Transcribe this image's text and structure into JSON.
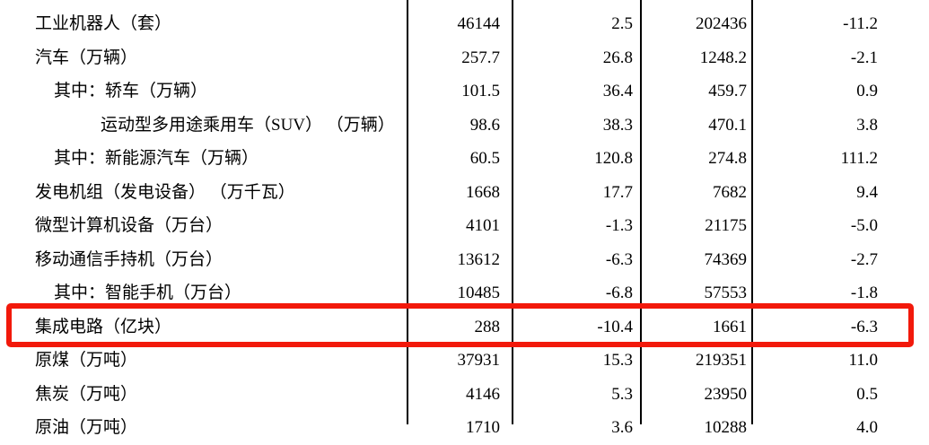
{
  "table": {
    "rows": [
      {
        "label": "工业机器人（套）",
        "indent": 0,
        "values": [
          "46144",
          "2.5",
          "202436",
          "-11.2"
        ],
        "highlight": false
      },
      {
        "label": "汽车（万辆）",
        "indent": 0,
        "values": [
          "257.7",
          "26.8",
          "1248.2",
          "-2.1"
        ],
        "highlight": false
      },
      {
        "label": "其中：轿车（万辆）",
        "indent": 1,
        "values": [
          "101.5",
          "36.4",
          "459.7",
          "0.9"
        ],
        "highlight": false
      },
      {
        "label": "运动型多用途乘用车（SUV） （万辆）",
        "indent": 2,
        "values": [
          "98.6",
          "38.3",
          "470.1",
          "3.8"
        ],
        "highlight": false
      },
      {
        "label": "其中：新能源汽车（万辆）",
        "indent": 1,
        "values": [
          "60.5",
          "120.8",
          "274.8",
          "111.2"
        ],
        "highlight": false
      },
      {
        "label": "发电机组（发电设备） （万千瓦）",
        "indent": 0,
        "values": [
          "1668",
          "17.7",
          "7682",
          "9.4"
        ],
        "highlight": false
      },
      {
        "label": "微型计算机设备（万台）",
        "indent": 0,
        "values": [
          "4101",
          "-1.3",
          "21175",
          "-5.0"
        ],
        "highlight": false
      },
      {
        "label": "移动通信手持机（万台）",
        "indent": 0,
        "values": [
          "13612",
          "-6.3",
          "74369",
          "-2.7"
        ],
        "highlight": false
      },
      {
        "label": "其中：智能手机（万台）",
        "indent": 1,
        "values": [
          "10485",
          "-6.8",
          "57553",
          "-1.8"
        ],
        "highlight": false
      },
      {
        "label": "集成电路（亿块）",
        "indent": 0,
        "values": [
          "288",
          "-10.4",
          "1661",
          "-6.3"
        ],
        "highlight": true
      },
      {
        "label": "原煤（万吨）",
        "indent": 0,
        "values": [
          "37931",
          "15.3",
          "219351",
          "11.0"
        ],
        "highlight": false
      },
      {
        "label": "焦炭（万吨）",
        "indent": 0,
        "values": [
          "4146",
          "5.3",
          "23950",
          "0.5"
        ],
        "highlight": false
      },
      {
        "label": "原油（万吨）",
        "indent": 0,
        "values": [
          "1710",
          "3.6",
          "10288",
          "4.0"
        ],
        "highlight": false
      }
    ],
    "highlight": {
      "color": "#f2190b"
    },
    "colors": {
      "text": "#000000",
      "grid_line": "#000000",
      "background": "#ffffff"
    }
  }
}
